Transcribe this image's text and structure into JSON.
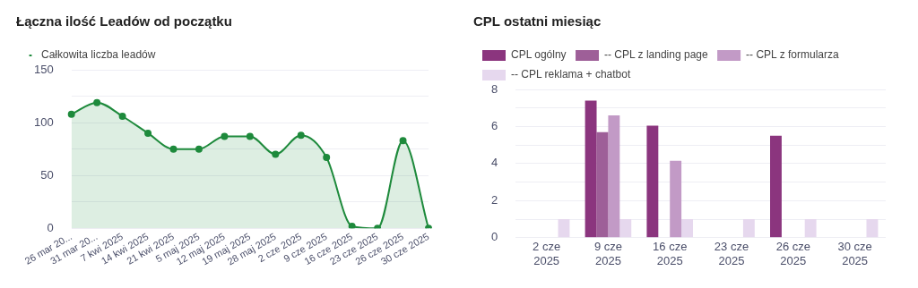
{
  "chart_data": [
    {
      "type": "area",
      "title": "Łączna ilość Leadów od początku",
      "categories": [
        "26 mar 20...",
        "31 mar 20...",
        "7 kwi 2025",
        "14 kwi 2025",
        "21 kwi 2025",
        "5 maj 2025",
        "12 maj 2025",
        "19 maj 2025",
        "28 maj 2025",
        "2 cze 2025",
        "9 cze 2025",
        "16 cze 2025",
        "23 cze 2025",
        "26 cze 2025",
        "30 cze 2025"
      ],
      "series": [
        {
          "name": "Całkowita liczba leadów",
          "color": "#1e8a3c",
          "values": [
            108,
            119,
            106,
            90,
            75,
            75,
            87,
            87,
            70,
            88,
            67,
            2,
            0,
            83,
            0
          ]
        }
      ],
      "ylim": [
        0,
        150
      ],
      "yticks": [
        0,
        {
          "value": 25,
          "label": null
        },
        50,
        {
          "value": 75,
          "label": null
        },
        100,
        {
          "value": 125,
          "label": null
        },
        150
      ],
      "grid": "y",
      "legend": "top left",
      "marker": "circle"
    },
    {
      "type": "bar",
      "title": "CPL ostatni miesiąc",
      "categories": [
        "2 cze 2025",
        "9 cze 2025",
        "16 cze 2025",
        "23 cze 2025",
        "26 cze 2025",
        "30 cze 2025"
      ],
      "series": [
        {
          "name": "CPL ogólny",
          "color": "#8b357e",
          "values": [
            null,
            7.4,
            6.05,
            null,
            5.5,
            null
          ]
        },
        {
          "name": "-- CPL z landing page",
          "color": "#9e5f98",
          "values": [
            null,
            5.7,
            null,
            null,
            null,
            null
          ]
        },
        {
          "name": "-- CPL z formularza",
          "color": "#c29ac6",
          "values": [
            null,
            6.6,
            4.15,
            null,
            null,
            null
          ]
        },
        {
          "name": "-- CPL reklama + chatbot",
          "color": "#e6d8ee",
          "values": [
            1,
            1,
            1,
            1,
            1,
            1
          ]
        }
      ],
      "ylim": [
        0,
        8
      ],
      "yticks": [
        0,
        {
          "value": 1,
          "label": null
        },
        2,
        {
          "value": 3,
          "label": null
        },
        4,
        {
          "value": 5,
          "label": null
        },
        6,
        {
          "value": 7,
          "label": null
        },
        8
      ],
      "grid": "y",
      "legend": "top left"
    }
  ]
}
